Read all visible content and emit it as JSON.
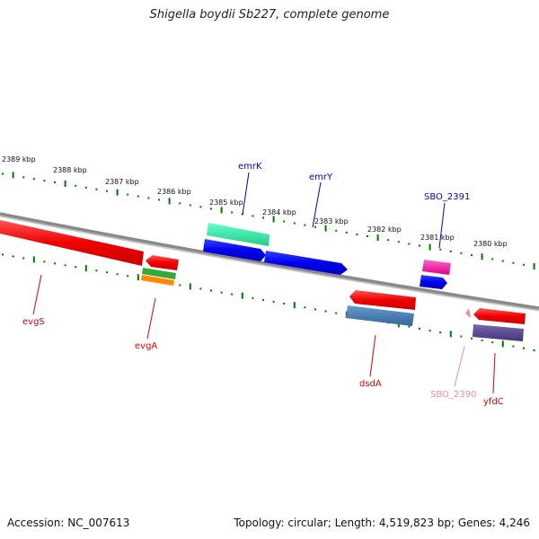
{
  "title": "Shigella boydii Sb227, complete genome",
  "footer": {
    "accession": "Accession: NC_007613",
    "summary": "Topology: circular; Length: 4,519,823 bp; Genes: 4,246"
  },
  "scale_labels": [
    "2389 kbp",
    "2388 kbp",
    "2387 kbp",
    "2386 kbp",
    "2385 kbp",
    "2384 kbp",
    "2383 kbp",
    "2382 kbp",
    "2381 kbp",
    "2380 kbp"
  ],
  "gene_labels": {
    "emrK": "emrK",
    "emrY": "emrY",
    "SBO_2391": "SBO_2391",
    "evgS": "evgS",
    "evgA": "evgA",
    "dsdA": "dsdA",
    "SBO_2390": "SBO_2390",
    "yfdC": "yfdC"
  },
  "colors": {
    "forward_label": "#0000cc",
    "reverse_label": "#dd0000",
    "pseudo_label": "#ee88aa",
    "backbone": "#888888",
    "ticks": "#007700"
  }
}
